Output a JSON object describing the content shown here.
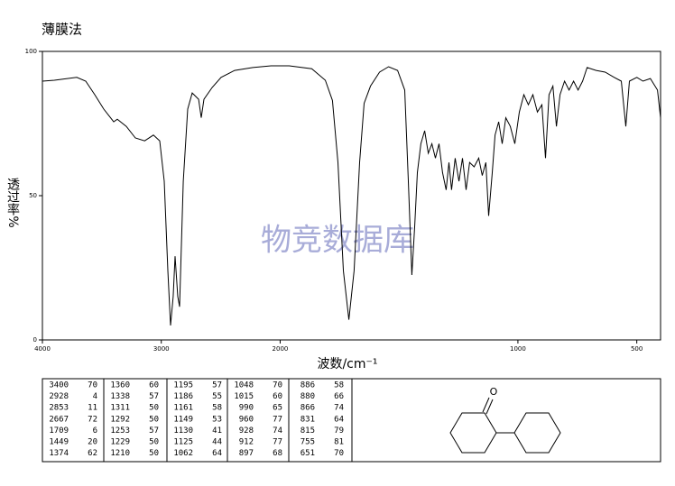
{
  "chart_data": {
    "type": "line",
    "title": "薄膜法",
    "xlabel": "波数/cm⁻¹",
    "ylabel": "透过率%",
    "watermark": "物竞数据库",
    "color": "#000000",
    "xlim": [
      4000,
      400
    ],
    "x_scale_change": {
      "at": 2000,
      "factor": 2
    },
    "xticks": [
      4000,
      3000,
      2000,
      1000,
      500
    ],
    "ylim": [
      0,
      100
    ],
    "yticks": [
      0,
      50,
      100
    ],
    "x": [
      4000,
      3900,
      3711,
      3636,
      3560,
      3484,
      3400,
      3370,
      3294,
      3218,
      3140,
      3066,
      3013,
      2975,
      2945,
      2922,
      2900,
      2884,
      2861,
      2846,
      2815,
      2778,
      2740,
      2686,
      2664,
      2641,
      2572,
      2497,
      2383,
      2230,
      2077,
      1962,
      1867,
      1810,
      1780,
      1757,
      1734,
      1711,
      1689,
      1666,
      1647,
      1620,
      1582,
      1544,
      1506,
      1476,
      1461,
      1446,
      1434,
      1423,
      1408,
      1392,
      1377,
      1362,
      1347,
      1332,
      1317,
      1302,
      1290,
      1279,
      1264,
      1248,
      1233,
      1218,
      1203,
      1184,
      1165,
      1150,
      1135,
      1123,
      1108,
      1096,
      1081,
      1066,
      1051,
      1032,
      1013,
      994,
      975,
      956,
      937,
      918,
      899,
      884,
      869,
      853,
      838,
      823,
      804,
      785,
      766,
      747,
      728,
      709,
      671,
      633,
      595,
      565,
      546,
      531,
      500,
      474,
      443,
      413,
      400
    ],
    "values": [
      89.7,
      90,
      91,
      89.7,
      85,
      80,
      75.6,
      76.5,
      74,
      70,
      69,
      71,
      69,
      55,
      24,
      5,
      15,
      29,
      15,
      11.5,
      55,
      80,
      85.6,
      83.4,
      77,
      83.4,
      87.5,
      91,
      93.4,
      94.4,
      95,
      95,
      94,
      90,
      83,
      61.5,
      24,
      7,
      24,
      61.5,
      82,
      88,
      92.8,
      94.7,
      93.4,
      86.6,
      55,
      22.5,
      39.7,
      58,
      68,
      72.5,
      64.7,
      68,
      63,
      68,
      58,
      52,
      61.5,
      52,
      63,
      55,
      63,
      52,
      61.5,
      60,
      63,
      57,
      61.5,
      43,
      58,
      71,
      75.6,
      68,
      77,
      74,
      68,
      79,
      85,
      81.5,
      85,
      79,
      81.5,
      63,
      85,
      88,
      74,
      85,
      89.7,
      86.6,
      89.7,
      86.6,
      89.7,
      94.4,
      93.4,
      92.8,
      91,
      89.7,
      74,
      89.7,
      91,
      89.7,
      90.6,
      86.6,
      77
    ],
    "peak_table": [
      [
        [
          3400,
          70
        ],
        [
          2928,
          4
        ],
        [
          2853,
          11
        ],
        [
          2667,
          72
        ],
        [
          1709,
          6
        ],
        [
          1449,
          20
        ],
        [
          1374,
          62
        ]
      ],
      [
        [
          1360,
          60
        ],
        [
          1338,
          57
        ],
        [
          1311,
          50
        ],
        [
          1292,
          50
        ],
        [
          1253,
          57
        ],
        [
          1229,
          50
        ],
        [
          1210,
          50
        ]
      ],
      [
        [
          1195,
          57
        ],
        [
          1186,
          55
        ],
        [
          1161,
          58
        ],
        [
          1149,
          53
        ],
        [
          1130,
          41
        ],
        [
          1125,
          44
        ],
        [
          1062,
          64
        ]
      ],
      [
        [
          1048,
          70
        ],
        [
          1015,
          60
        ],
        [
          990,
          65
        ],
        [
          960,
          77
        ],
        [
          928,
          74
        ],
        [
          912,
          77
        ],
        [
          897,
          68
        ]
      ],
      [
        [
          886,
          58
        ],
        [
          880,
          66
        ],
        [
          866,
          74
        ],
        [
          831,
          64
        ],
        [
          815,
          79
        ],
        [
          755,
          81
        ],
        [
          651,
          70
        ]
      ]
    ],
    "structure_label": "O"
  }
}
